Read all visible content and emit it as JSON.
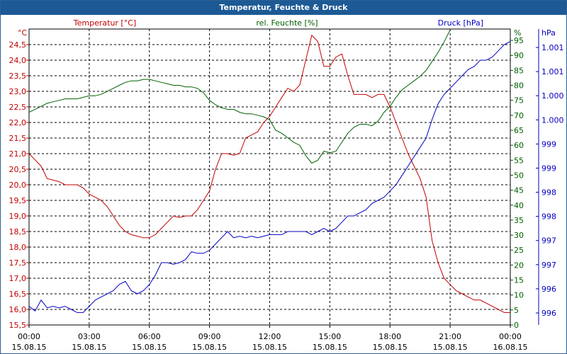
{
  "window": {
    "title": "Temperatur, Feuchte & Druck"
  },
  "chart_data": {
    "type": "line",
    "title": "Temperatur, Feuchte & Druck",
    "grid": true,
    "colors": {
      "temperature": "#c00000",
      "humidity": "#006000",
      "pressure": "#0000c0",
      "frame": "#1d5a95"
    },
    "x_ticks": [
      {
        "time": "00:00",
        "date": "15.08.15"
      },
      {
        "time": "03:00",
        "date": "15.08.15"
      },
      {
        "time": "06:00",
        "date": "15.08.15"
      },
      {
        "time": "09:00",
        "date": "15.08.15"
      },
      {
        "time": "12:00",
        "date": "15.08.15"
      },
      {
        "time": "15:00",
        "date": "15.08.15"
      },
      {
        "time": "18:00",
        "date": "15.08.15"
      },
      {
        "time": "21:00",
        "date": "15.08.15"
      },
      {
        "time": "00:00",
        "date": "16.08.15"
      }
    ],
    "x_hours": [
      0,
      3,
      6,
      9,
      12,
      15,
      18,
      21,
      24
    ],
    "axes": {
      "temperature": {
        "unit": "°C",
        "label": "Temperatur [°C]",
        "ylim": [
          15.5,
          25
        ],
        "ticks": [
          "15,5",
          "16,0",
          "16,5",
          "17,0",
          "17,5",
          "18,0",
          "18,5",
          "19,0",
          "19,5",
          "20,0",
          "20,5",
          "21,0",
          "21,5",
          "22,0",
          "22,5",
          "23,0",
          "23,5",
          "24,0",
          "24,5"
        ]
      },
      "humidity": {
        "unit": "%",
        "label": "rel. Feuchte [%]",
        "ylim": [
          0,
          98.8
        ],
        "ticks": [
          "0",
          "5",
          "10",
          "15",
          "20",
          "25",
          "30",
          "35",
          "40",
          "45",
          "50",
          "55",
          "60",
          "65",
          "70",
          "75",
          "80",
          "85",
          "90",
          "95"
        ]
      },
      "pressure": {
        "unit": "hPa",
        "label": "Druck [hPa]",
        "ticks": [
          "996",
          "996",
          "997",
          "997",
          "998",
          "998",
          "999",
          "999",
          "1.000",
          "1.000",
          "1.001",
          "1.001"
        ]
      }
    },
    "series": [
      {
        "name": "Temperatur [°C]",
        "axis": "temperature",
        "points": [
          [
            0,
            21.0
          ],
          [
            0.3,
            20.8
          ],
          [
            0.6,
            20.6
          ],
          [
            0.9,
            20.2
          ],
          [
            1.2,
            20.15
          ],
          [
            1.5,
            20.1
          ],
          [
            1.8,
            20.0
          ],
          [
            2.1,
            20.0
          ],
          [
            2.4,
            20.0
          ],
          [
            2.7,
            19.9
          ],
          [
            3.0,
            19.7
          ],
          [
            3.3,
            19.6
          ],
          [
            3.6,
            19.5
          ],
          [
            3.9,
            19.3
          ],
          [
            4.2,
            19.0
          ],
          [
            4.5,
            18.7
          ],
          [
            4.8,
            18.5
          ],
          [
            5.1,
            18.4
          ],
          [
            5.4,
            18.35
          ],
          [
            5.7,
            18.3
          ],
          [
            6.0,
            18.3
          ],
          [
            6.3,
            18.4
          ],
          [
            6.6,
            18.6
          ],
          [
            6.9,
            18.8
          ],
          [
            7.2,
            19.0
          ],
          [
            7.5,
            18.95
          ],
          [
            7.8,
            19.0
          ],
          [
            8.1,
            19.0
          ],
          [
            8.4,
            19.2
          ],
          [
            8.7,
            19.5
          ],
          [
            9.0,
            19.8
          ],
          [
            9.3,
            20.5
          ],
          [
            9.6,
            21.0
          ],
          [
            9.9,
            21.0
          ],
          [
            10.2,
            20.95
          ],
          [
            10.5,
            21.0
          ],
          [
            10.8,
            21.5
          ],
          [
            11.1,
            21.6
          ],
          [
            11.4,
            21.7
          ],
          [
            11.7,
            22.0
          ],
          [
            12.0,
            22.2
          ],
          [
            12.3,
            22.5
          ],
          [
            12.6,
            22.8
          ],
          [
            12.9,
            23.1
          ],
          [
            13.2,
            23.0
          ],
          [
            13.5,
            23.2
          ],
          [
            13.8,
            24.0
          ],
          [
            14.1,
            24.8
          ],
          [
            14.4,
            24.6
          ],
          [
            14.7,
            23.8
          ],
          [
            15.0,
            23.8
          ],
          [
            15.3,
            24.1
          ],
          [
            15.6,
            24.2
          ],
          [
            15.9,
            23.5
          ],
          [
            16.2,
            22.9
          ],
          [
            16.5,
            22.9
          ],
          [
            16.8,
            22.9
          ],
          [
            17.1,
            22.8
          ],
          [
            17.4,
            22.9
          ],
          [
            17.7,
            22.9
          ],
          [
            18.0,
            22.5
          ],
          [
            18.3,
            22.0
          ],
          [
            18.6,
            21.5
          ],
          [
            18.9,
            21.0
          ],
          [
            19.2,
            20.6
          ],
          [
            19.5,
            20.2
          ],
          [
            19.8,
            19.6
          ],
          [
            20.1,
            18.2
          ],
          [
            20.4,
            17.5
          ],
          [
            20.7,
            17.0
          ],
          [
            21.0,
            16.8
          ],
          [
            21.3,
            16.6
          ],
          [
            21.6,
            16.5
          ],
          [
            21.9,
            16.4
          ],
          [
            22.2,
            16.3
          ],
          [
            22.5,
            16.3
          ],
          [
            22.8,
            16.2
          ],
          [
            23.1,
            16.1
          ],
          [
            23.4,
            16.0
          ],
          [
            23.7,
            15.9
          ],
          [
            24.0,
            15.9
          ]
        ]
      },
      {
        "name": "rel. Feuchte [%]",
        "axis": "humidity",
        "points": [
          [
            0,
            71.0
          ],
          [
            0.3,
            72.0
          ],
          [
            0.6,
            73.0
          ],
          [
            0.9,
            74.0
          ],
          [
            1.2,
            74.5
          ],
          [
            1.5,
            75.0
          ],
          [
            1.8,
            75.5
          ],
          [
            2.1,
            75.5
          ],
          [
            2.4,
            75.5
          ],
          [
            2.7,
            76.0
          ],
          [
            3.0,
            76.5
          ],
          [
            3.3,
            76.5
          ],
          [
            3.6,
            77.0
          ],
          [
            3.9,
            78.0
          ],
          [
            4.2,
            79.0
          ],
          [
            4.5,
            80.0
          ],
          [
            4.8,
            81.0
          ],
          [
            5.1,
            81.5
          ],
          [
            5.4,
            81.5
          ],
          [
            5.7,
            82.0
          ],
          [
            6.0,
            82.0
          ],
          [
            6.3,
            81.5
          ],
          [
            6.6,
            81.0
          ],
          [
            6.9,
            80.5
          ],
          [
            7.2,
            80.0
          ],
          [
            7.5,
            80.0
          ],
          [
            7.8,
            79.5
          ],
          [
            8.1,
            79.5
          ],
          [
            8.4,
            79.0
          ],
          [
            8.7,
            77.5
          ],
          [
            9.0,
            75.0
          ],
          [
            9.3,
            73.5
          ],
          [
            9.6,
            72.5
          ],
          [
            9.9,
            72.0
          ],
          [
            10.2,
            72.0
          ],
          [
            10.5,
            71.0
          ],
          [
            10.8,
            70.5
          ],
          [
            11.1,
            70.5
          ],
          [
            11.4,
            70.0
          ],
          [
            11.7,
            69.5
          ],
          [
            12.0,
            68.5
          ],
          [
            12.3,
            65.0
          ],
          [
            12.6,
            64.0
          ],
          [
            12.9,
            62.5
          ],
          [
            13.2,
            61.0
          ],
          [
            13.5,
            60.0
          ],
          [
            13.8,
            56.5
          ],
          [
            14.1,
            54.0
          ],
          [
            14.4,
            55.0
          ],
          [
            14.7,
            58.0
          ],
          [
            15.0,
            57.5
          ],
          [
            15.3,
            58.0
          ],
          [
            15.6,
            61.0
          ],
          [
            15.9,
            64.0
          ],
          [
            16.2,
            66.0
          ],
          [
            16.5,
            67.0
          ],
          [
            16.8,
            67.0
          ],
          [
            17.1,
            66.5
          ],
          [
            17.4,
            68.0
          ],
          [
            17.7,
            71.0
          ],
          [
            18.0,
            73.0
          ],
          [
            18.3,
            76.0
          ],
          [
            18.6,
            78.5
          ],
          [
            18.9,
            80.0
          ],
          [
            19.2,
            81.5
          ],
          [
            19.5,
            83.0
          ],
          [
            19.8,
            85.0
          ],
          [
            20.1,
            88.0
          ],
          [
            20.4,
            91.0
          ],
          [
            20.7,
            94.5
          ],
          [
            21.0,
            98.5
          ]
        ]
      },
      {
        "name": "Druck [hPa]",
        "axis": "pressure",
        "points": [
          [
            0,
            16.1
          ],
          [
            0.3,
            15.95
          ],
          [
            0.6,
            16.3
          ],
          [
            0.9,
            16.05
          ],
          [
            1.2,
            16.1
          ],
          [
            1.5,
            16.05
          ],
          [
            1.8,
            16.1
          ],
          [
            2.1,
            16.0
          ],
          [
            2.4,
            15.9
          ],
          [
            2.7,
            15.9
          ],
          [
            3.0,
            16.1
          ],
          [
            3.3,
            16.3
          ],
          [
            3.6,
            16.4
          ],
          [
            3.9,
            16.5
          ],
          [
            4.2,
            16.6
          ],
          [
            4.5,
            16.8
          ],
          [
            4.8,
            16.9
          ],
          [
            5.1,
            16.6
          ],
          [
            5.4,
            16.5
          ],
          [
            5.7,
            16.6
          ],
          [
            6.0,
            16.8
          ],
          [
            6.3,
            17.1
          ],
          [
            6.6,
            17.5
          ],
          [
            6.9,
            17.5
          ],
          [
            7.2,
            17.45
          ],
          [
            7.5,
            17.5
          ],
          [
            7.8,
            17.6
          ],
          [
            8.1,
            17.85
          ],
          [
            8.4,
            17.8
          ],
          [
            8.7,
            17.8
          ],
          [
            9.0,
            17.9
          ],
          [
            9.3,
            18.1
          ],
          [
            9.6,
            18.3
          ],
          [
            9.9,
            18.5
          ],
          [
            10.2,
            18.3
          ],
          [
            10.5,
            18.35
          ],
          [
            10.8,
            18.3
          ],
          [
            11.1,
            18.35
          ],
          [
            11.4,
            18.3
          ],
          [
            11.7,
            18.35
          ],
          [
            12.0,
            18.4
          ],
          [
            12.3,
            18.4
          ],
          [
            12.6,
            18.4
          ],
          [
            12.9,
            18.5
          ],
          [
            13.2,
            18.5
          ],
          [
            13.5,
            18.5
          ],
          [
            13.8,
            18.5
          ],
          [
            14.1,
            18.4
          ],
          [
            14.4,
            18.5
          ],
          [
            14.7,
            18.6
          ],
          [
            15.0,
            18.5
          ],
          [
            15.3,
            18.6
          ],
          [
            15.6,
            18.8
          ],
          [
            15.9,
            19.0
          ],
          [
            16.2,
            19.0
          ],
          [
            16.5,
            19.1
          ],
          [
            16.8,
            19.2
          ],
          [
            17.1,
            19.4
          ],
          [
            17.4,
            19.5
          ],
          [
            17.7,
            19.6
          ],
          [
            18.0,
            19.8
          ],
          [
            18.3,
            20.0
          ],
          [
            18.6,
            20.3
          ],
          [
            18.9,
            20.6
          ],
          [
            19.2,
            20.9
          ],
          [
            19.5,
            21.2
          ],
          [
            19.8,
            21.5
          ],
          [
            20.1,
            22.1
          ],
          [
            20.4,
            22.6
          ],
          [
            20.7,
            22.9
          ],
          [
            21.0,
            23.1
          ],
          [
            21.3,
            23.3
          ],
          [
            21.6,
            23.5
          ],
          [
            21.9,
            23.7
          ],
          [
            22.2,
            23.8
          ],
          [
            22.5,
            24.0
          ],
          [
            22.8,
            24.0
          ],
          [
            23.1,
            24.1
          ],
          [
            23.4,
            24.3
          ],
          [
            23.7,
            24.5
          ],
          [
            24.0,
            24.6
          ]
        ]
      }
    ]
  }
}
